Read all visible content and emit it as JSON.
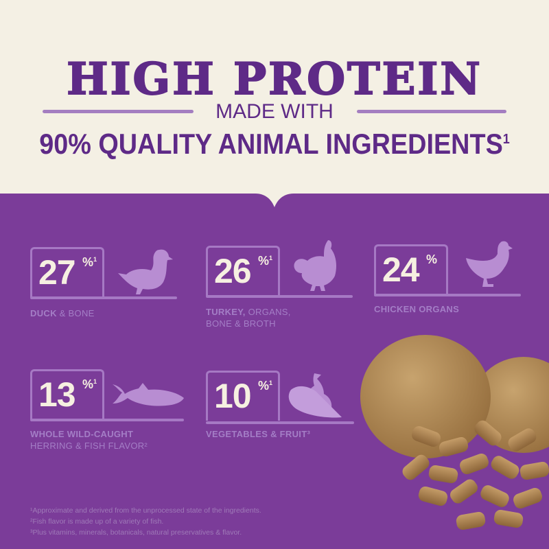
{
  "header": {
    "title": "HIGH PROTEIN",
    "subtitle": "MADE WITH",
    "headline": "90% QUALITY ANIMAL INGREDIENTS",
    "headline_footnote": "1"
  },
  "stats": [
    {
      "value": "27",
      "unit": "%",
      "footnote": "1",
      "icon": "duck-icon",
      "label_bold": "DUCK",
      "label_rest": " & BONE",
      "label_line2": ""
    },
    {
      "value": "26",
      "unit": "%",
      "footnote": "1",
      "icon": "turkey-icon",
      "label_bold": "TURKEY,",
      "label_rest": " ORGANS,",
      "label_line2": "BONE & BROTH"
    },
    {
      "value": "24",
      "unit": "%",
      "footnote": "",
      "icon": "chicken-icon",
      "label_bold": "CHICKEN ORGANS",
      "label_rest": "",
      "label_line2": ""
    },
    {
      "value": "13",
      "unit": "%",
      "footnote": "1",
      "icon": "fish-icon",
      "label_bold": "WHOLE WILD-CAUGHT",
      "label_rest": "",
      "label_line2": "HERRING & FISH FLAVOR²"
    },
    {
      "value": "10",
      "unit": "%",
      "footnote": "1",
      "icon": "vegetable-fruit-icon",
      "label_bold": "VEGETABLES & FRUIT³",
      "label_rest": "",
      "label_line2": ""
    }
  ],
  "footnotes": [
    "¹Approximate and derived from the unprocessed state of the ingredients.",
    "²Fish flavor is made up of a variety of fish.",
    "³Plus vitamins, minerals, botanicals, natural preservatives & flavor."
  ],
  "colors": {
    "background": "#7b3c99",
    "cream": "#f4f0e4",
    "title": "#5e2a87",
    "accent": "#a679c4",
    "number": "#f6f0e1"
  }
}
